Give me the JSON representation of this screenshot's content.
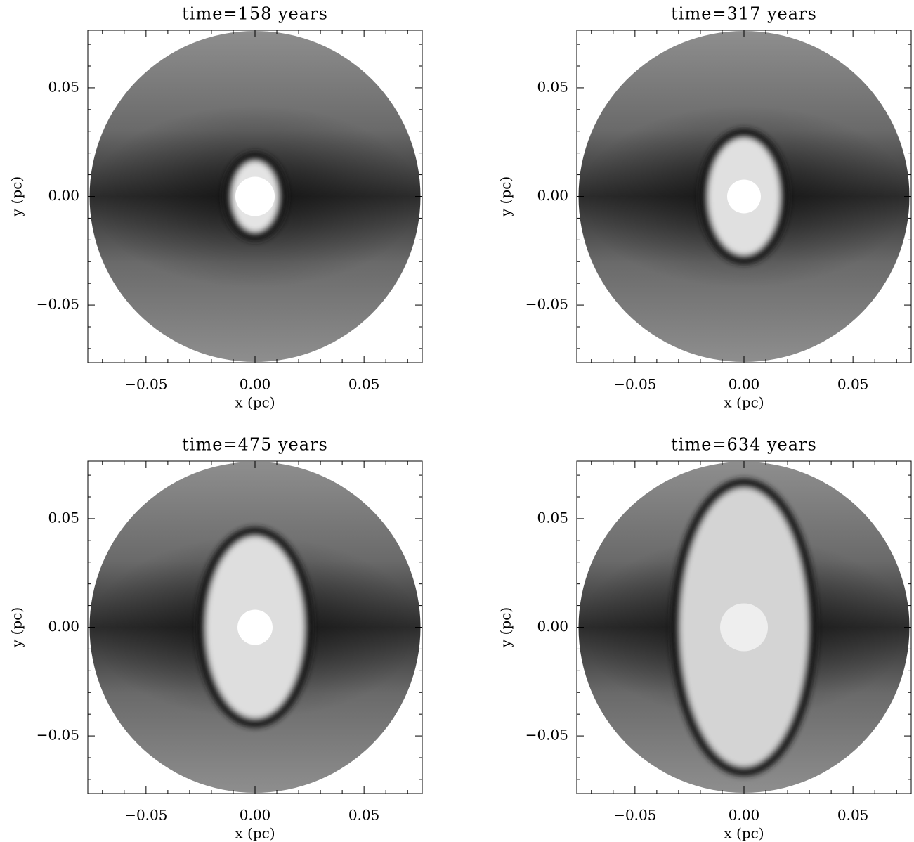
{
  "chart_data": [
    {
      "type": "image",
      "title": "time=158 years",
      "xlabel": "x (pc)",
      "ylabel": "y (pc)",
      "xlim": [
        -0.0767,
        0.0767
      ],
      "ylim": [
        -0.0765,
        0.0765
      ],
      "xticks": [
        {
          "value": -0.05,
          "label": "−0.05"
        },
        {
          "value": 0,
          "label": "0.00"
        },
        {
          "value": 0.05,
          "label": "0.05"
        }
      ],
      "yticks": [
        {
          "value": -0.05,
          "label": "−0.05"
        },
        {
          "value": 0,
          "label": "0.00"
        },
        {
          "value": 0.05,
          "label": "0.05"
        }
      ],
      "xminorticks": [
        -0.07,
        -0.06,
        -0.04,
        -0.03,
        -0.02,
        -0.01,
        0.01,
        0.02,
        0.03,
        0.04,
        0.06,
        0.07
      ],
      "yminorticks": [
        -0.07,
        -0.06,
        -0.04,
        -0.03,
        -0.02,
        -0.01,
        0.01,
        0.02,
        0.03,
        0.04,
        0.06,
        0.07
      ]
    },
    {
      "type": "image",
      "title": "time=317 years",
      "xlabel": "x (pc)",
      "ylabel": "y (pc)",
      "xlim": [
        -0.0767,
        0.0767
      ],
      "ylim": [
        -0.0765,
        0.0765
      ],
      "xticks": [
        {
          "value": -0.05,
          "label": "−0.05"
        },
        {
          "value": 0,
          "label": "0.00"
        },
        {
          "value": 0.05,
          "label": "0.05"
        }
      ],
      "yticks": [
        {
          "value": -0.05,
          "label": "−0.05"
        },
        {
          "value": 0,
          "label": "0.00"
        },
        {
          "value": 0.05,
          "label": "0.05"
        }
      ],
      "xminorticks": [
        -0.07,
        -0.06,
        -0.04,
        -0.03,
        -0.02,
        -0.01,
        0.01,
        0.02,
        0.03,
        0.04,
        0.06,
        0.07
      ],
      "yminorticks": [
        -0.07,
        -0.06,
        -0.04,
        -0.03,
        -0.02,
        -0.01,
        0.01,
        0.02,
        0.03,
        0.04,
        0.06,
        0.07
      ]
    },
    {
      "type": "image",
      "title": "time=475 years",
      "xlabel": "x (pc)",
      "ylabel": "y (pc)",
      "xlim": [
        -0.0767,
        0.0767
      ],
      "ylim": [
        -0.0765,
        0.0765
      ],
      "xticks": [
        {
          "value": -0.05,
          "label": "−0.05"
        },
        {
          "value": 0,
          "label": "0.00"
        },
        {
          "value": 0.05,
          "label": "0.05"
        }
      ],
      "yticks": [
        {
          "value": -0.05,
          "label": "−0.05"
        },
        {
          "value": 0,
          "label": "0.00"
        },
        {
          "value": 0.05,
          "label": "0.05"
        }
      ],
      "xminorticks": [
        -0.07,
        -0.06,
        -0.04,
        -0.03,
        -0.02,
        -0.01,
        0.01,
        0.02,
        0.03,
        0.04,
        0.06,
        0.07
      ],
      "yminorticks": [
        -0.07,
        -0.06,
        -0.04,
        -0.03,
        -0.02,
        -0.01,
        0.01,
        0.02,
        0.03,
        0.04,
        0.06,
        0.07
      ]
    },
    {
      "type": "image",
      "title": "time=634 years",
      "xlabel": "x (pc)",
      "ylabel": "y (pc)",
      "xlim": [
        -0.0767,
        0.0767
      ],
      "ylim": [
        -0.0765,
        0.0765
      ],
      "xticks": [
        {
          "value": -0.05,
          "label": "−0.05"
        },
        {
          "value": 0,
          "label": "0.00"
        },
        {
          "value": 0.05,
          "label": "0.05"
        }
      ],
      "yticks": [
        {
          "value": -0.05,
          "label": "−0.05"
        },
        {
          "value": 0,
          "label": "0.00"
        },
        {
          "value": 0.05,
          "label": "0.05"
        }
      ],
      "xminorticks": [
        -0.07,
        -0.06,
        -0.04,
        -0.03,
        -0.02,
        -0.01,
        0.01,
        0.02,
        0.03,
        0.04,
        0.06,
        0.07
      ],
      "yminorticks": [
        -0.07,
        -0.06,
        -0.04,
        -0.03,
        -0.02,
        -0.01,
        0.01,
        0.02,
        0.03,
        0.04,
        0.06,
        0.07
      ]
    }
  ]
}
